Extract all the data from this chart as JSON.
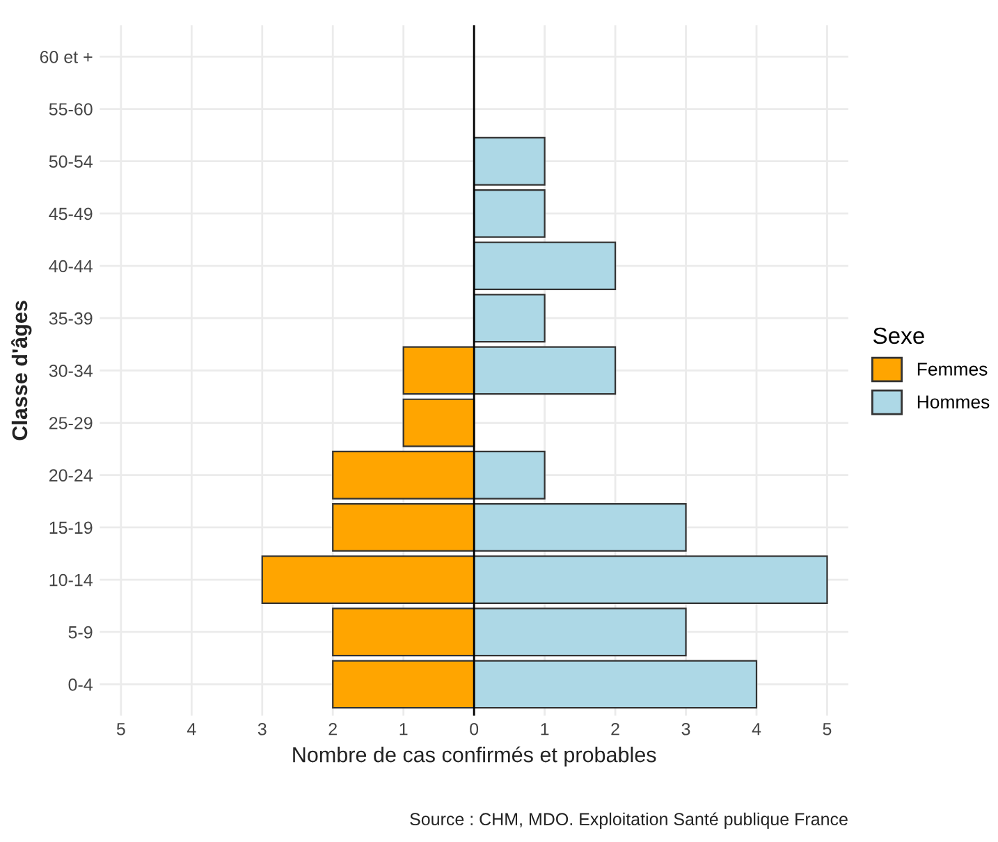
{
  "chart_data": {
    "type": "bar",
    "orientation": "horizontal",
    "xlabel": "Nombre de cas confirmés et probables",
    "ylabel": "Classe d'âges",
    "legend_title": "Sexe",
    "legend": "right",
    "grid": true,
    "categories": [
      "60 et +",
      "55-60",
      "50-54",
      "45-49",
      "40-44",
      "35-39",
      "30-34",
      "25-29",
      "20-24",
      "15-19",
      "10-14",
      "5-9",
      "0-4"
    ],
    "series": [
      {
        "name": "Femmes",
        "color": "#ffa500",
        "values": [
          null,
          null,
          null,
          null,
          null,
          null,
          -1,
          -1,
          -2,
          -2,
          -3,
          -2,
          -2
        ]
      },
      {
        "name": "Hommes",
        "color": "#add8e6",
        "values": [
          null,
          null,
          1,
          1,
          2,
          1,
          2,
          null,
          1,
          3,
          5,
          3,
          4
        ]
      }
    ],
    "xlim": [
      -5.3,
      5.3
    ],
    "xticks": [
      {
        "value": -5,
        "label": "5"
      },
      {
        "value": -4,
        "label": "4"
      },
      {
        "value": -3,
        "label": "3"
      },
      {
        "value": -2,
        "label": "2"
      },
      {
        "value": -1,
        "label": "1"
      },
      0,
      1,
      2,
      3,
      4,
      5
    ],
    "ref_lines": [
      {
        "axis": "x",
        "value": 0,
        "color": "#000000"
      }
    ],
    "annotations": [
      "Source : CHM, MDO. Exploitation Santé publique France"
    ]
  }
}
